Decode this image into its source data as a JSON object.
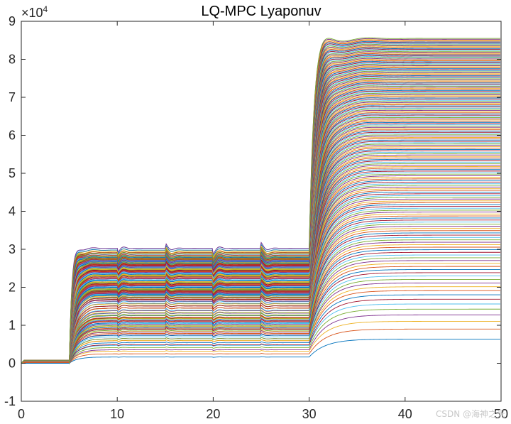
{
  "chart_data": {
    "type": "line",
    "title": "LQ-MPC Lyaponuv",
    "xlabel": "",
    "ylabel": "",
    "xlim": [
      0,
      50
    ],
    "ylim": [
      -10000,
      90000
    ],
    "y_exponent_label": "×10",
    "y_exponent_power": "4",
    "x_ticks": [
      "0",
      "10",
      "20",
      "30",
      "40",
      "50"
    ],
    "x_tick_values": [
      0,
      10,
      20,
      30,
      40,
      50
    ],
    "y_ticks": [
      "-1",
      "0",
      "1",
      "2",
      "3",
      "4",
      "5",
      "6",
      "7",
      "8",
      "9"
    ],
    "y_tick_values": [
      -10000,
      0,
      10000,
      20000,
      30000,
      40000,
      50000,
      60000,
      70000,
      80000,
      90000
    ],
    "grid": false,
    "series_description": "Hundreds of state trajectories; approx 0 on [0,5), step to levels up to ~30800 at t=5 with transients at t=10,15,20,25, step to levels up to ~85500 at t=30",
    "phase_breakpoints": [
      0,
      5,
      10,
      15,
      20,
      25,
      30,
      50
    ],
    "phase1_max": 30800,
    "phase2_max": 85500,
    "initial_level": 800,
    "series_count": 180,
    "colors": [
      "#0072BD",
      "#D95319",
      "#EDB120",
      "#7E2F8E",
      "#77AC30",
      "#4DBEEE",
      "#A2142F"
    ]
  },
  "watermark": "CSDN @海神之光"
}
